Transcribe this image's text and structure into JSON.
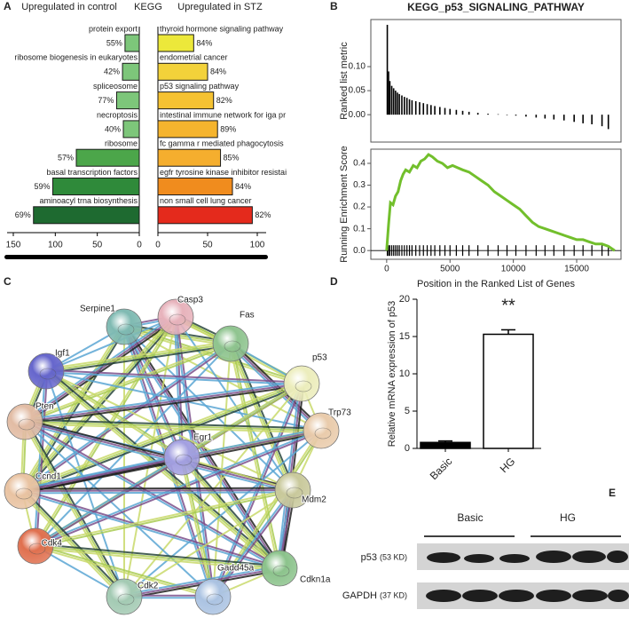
{
  "panels": [
    "A",
    "B",
    "C",
    "D",
    "E"
  ],
  "chart_data": [
    {
      "type": "bar",
      "orientation": "horizontal",
      "title": "KEGG",
      "series": [
        {
          "name": "Upregulated in control",
          "color": "#f5a623",
          "categories": [
            "protein export",
            "ribosome biogenesis in eukaryotes",
            "spliceosome",
            "necroptosis",
            "ribosome",
            "basal transcription factors",
            "aminoacyl trna biosynthesis"
          ],
          "values": [
            17,
            20,
            27,
            19,
            75,
            103,
            126
          ],
          "percent_labels": [
            "55%",
            "42%",
            "77%",
            "40%",
            "57%",
            "59%",
            "69%"
          ],
          "colors": [
            "#7dc67a",
            "#7dc67a",
            "#7dc67a",
            "#7dc67a",
            "#4ca64a",
            "#2f8a3a",
            "#1e6a30"
          ],
          "xlim": [
            0,
            150
          ],
          "xticks": [
            150,
            100,
            50,
            0
          ]
        },
        {
          "name": "Upregulated in STZ",
          "color": "#3aa33a",
          "categories": [
            "thyroid hormone signaling pathway",
            "endometrial cancer",
            "p53 signaling pathway",
            "intestinal immune network for iga pr",
            "fc gamma r mediated phagocytosis",
            "egfr tyrosine kinase inhibitor resistai",
            "non small cell lung cancer"
          ],
          "values": [
            36,
            50,
            56,
            60,
            63,
            75,
            95
          ],
          "percent_labels": [
            "84%",
            "84%",
            "82%",
            "89%",
            "85%",
            "84%",
            "82%"
          ],
          "colors": [
            "#ece83a",
            "#f3d23a",
            "#f5c232",
            "#f5b42e",
            "#f5ae2e",
            "#f08c1e",
            "#e42a1c"
          ],
          "label_colors": [
            "#222222",
            "#222222",
            "#e02020",
            "#222222",
            "#222222",
            "#222222",
            "#222222"
          ],
          "xlim": [
            0,
            100
          ],
          "xticks": [
            0,
            50,
            100
          ]
        }
      ]
    },
    {
      "type": "line",
      "title": "KEGG_p53_SIGNALING_PATHWAY",
      "xlabel": "Position in the Ranked List of Genes",
      "xlim": [
        -1250,
        18500
      ],
      "xticks": [
        0,
        5000,
        10000,
        15000
      ],
      "hits": {
        "x": [
          50,
          150,
          250,
          400,
          550,
          700,
          850,
          1000,
          1200,
          1400,
          1600,
          1800,
          2000,
          2300,
          2600,
          2900,
          3200,
          3500,
          3800,
          4200,
          4600,
          5000,
          5500,
          6000,
          6500,
          7200,
          8000,
          8800,
          9500,
          10200,
          11000,
          11800,
          12500,
          13200,
          14000,
          14800,
          15500,
          16200,
          17000,
          17500
        ],
        "values": [
          0.187,
          0.09,
          0.07,
          0.06,
          0.055,
          0.05,
          0.046,
          0.043,
          0.04,
          0.037,
          0.035,
          0.032,
          0.03,
          0.028,
          0.026,
          0.024,
          0.022,
          0.02,
          0.018,
          0.016,
          0.014,
          0.012,
          0.01,
          0.008,
          0.006,
          0.004,
          0.002,
          0.001,
          -0.001,
          -0.002,
          -0.004,
          -0.006,
          -0.008,
          -0.01,
          -0.012,
          -0.015,
          -0.018,
          -0.02,
          -0.024,
          -0.03
        ]
      },
      "upper": {
        "ylabel": "Ranked list metric",
        "ylim": [
          -0.057,
          0.198
        ],
        "yticks": [
          {
            "value": 0,
            "label": "0.00"
          },
          {
            "value": 0.05,
            "label": "0.05"
          },
          {
            "value": 0.1,
            "label": "0.10"
          }
        ]
      },
      "lower": {
        "ylabel": "Running Enrichment Score",
        "ylim": [
          -0.04,
          0.465
        ],
        "yticks": [
          {
            "value": 0,
            "label": "0.0"
          },
          0.1,
          0.2,
          0.3,
          0.4
        ],
        "series": [
          {
            "color": "#72bf2c",
            "x": [
              0,
              150,
              300,
              500,
              700,
              900,
              1100,
              1300,
              1500,
              1800,
              2100,
              2400,
              2700,
              3000,
              3300,
              3600,
              4000,
              4400,
              4800,
              5200,
              5600,
              6000,
              6500,
              7000,
              7500,
              8000,
              8500,
              9000,
              9500,
              10000,
              10500,
              11000,
              11500,
              12000,
              12500,
              13000,
              13500,
              14000,
              14500,
              15000,
              15500,
              16000,
              16500,
              17000,
              17500,
              18000
            ],
            "values": [
              0,
              0.12,
              0.22,
              0.21,
              0.25,
              0.27,
              0.32,
              0.35,
              0.37,
              0.36,
              0.39,
              0.38,
              0.41,
              0.42,
              0.44,
              0.43,
              0.41,
              0.4,
              0.38,
              0.39,
              0.38,
              0.37,
              0.36,
              0.34,
              0.32,
              0.3,
              0.27,
              0.25,
              0.23,
              0.21,
              0.19,
              0.16,
              0.13,
              0.11,
              0.1,
              0.09,
              0.08,
              0.07,
              0.06,
              0.05,
              0.05,
              0.04,
              0.03,
              0.03,
              0.02,
              0
            ]
          }
        ]
      }
    },
    {
      "type": "bar",
      "ylabel": "Relative mRNA expression of p53",
      "categories": [
        "Basic",
        "HG"
      ],
      "values": [
        0.8,
        15.3
      ],
      "errors": [
        0.2,
        0.6
      ],
      "colors": [
        "#000000",
        "#ffffff"
      ],
      "annotation": "**",
      "ylim": [
        0,
        20
      ],
      "yticks": [
        0,
        5,
        10,
        15,
        20
      ]
    }
  ],
  "network": {
    "nodes": [
      {
        "label": "Serpine1",
        "color": "#7fbab2"
      },
      {
        "label": "Casp3",
        "color": "#e7b2bb"
      },
      {
        "label": "Fas",
        "color": "#8fc48f"
      },
      {
        "label": "Igf1",
        "color": "#6666cc"
      },
      {
        "label": "p53",
        "color": "#ecedbc",
        "label_color": "#e02020"
      },
      {
        "label": "Pten",
        "color": "#e2bca4"
      },
      {
        "label": "Trp73",
        "color": "#e9cbab"
      },
      {
        "label": "Egr1",
        "color": "#a29fe0",
        "label_color": "#e02020"
      },
      {
        "label": "Ccnd1",
        "color": "#e9c3a2"
      },
      {
        "label": "Mdm2",
        "color": "#c9c99c"
      },
      {
        "label": "Cdk4",
        "color": "#e0704f"
      },
      {
        "label": "Cdkn1a",
        "color": "#8cc38c"
      },
      {
        "label": "Cdk2",
        "color": "#a3cab3"
      },
      {
        "label": "Gadd45a",
        "color": "#abc3e2"
      }
    ]
  },
  "blot": {
    "groups": [
      "Basic",
      "HG"
    ],
    "rows": [
      {
        "protein": "p53",
        "size": "(53 KD)"
      },
      {
        "protein": "GAPDH",
        "size": "(37 KD)"
      }
    ]
  }
}
